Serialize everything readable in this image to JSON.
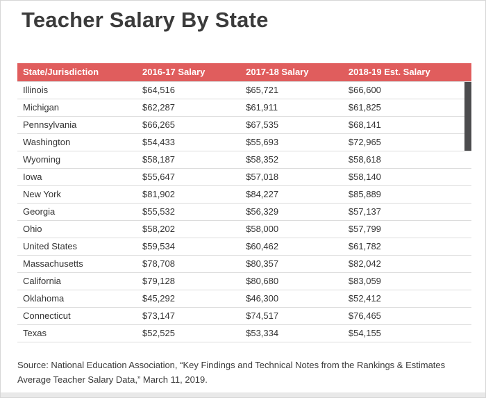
{
  "page": {
    "title": "Teacher Salary By State",
    "source_line1": "Source: National Education Association, “Key Findings and Technical Notes from the Rankings & Estimates",
    "source_line2": "Average Teacher Salary Data,” March 11, 2019."
  },
  "colors": {
    "header_bg": "#e05d5d",
    "header_text": "#ffffff",
    "scrollbar_thumb": "#4c4c4e"
  },
  "table": {
    "headers": [
      "State/Jurisdiction",
      "2016-17 Salary",
      "2017-18 Salary",
      "2018-19 Est. Salary"
    ],
    "rows": [
      [
        "Illinois",
        "$64,516",
        "$65,721",
        "$66,600"
      ],
      [
        "Michigan",
        "$62,287",
        "$61,911",
        "$61,825"
      ],
      [
        "Pennsylvania",
        "$66,265",
        "$67,535",
        "$68,141"
      ],
      [
        "Washington",
        "$54,433",
        "$55,693",
        "$72,965"
      ],
      [
        "Wyoming",
        "$58,187",
        "$58,352",
        "$58,618"
      ],
      [
        "Iowa",
        "$55,647",
        "$57,018",
        "$58,140"
      ],
      [
        "New York",
        "$81,902",
        "$84,227",
        "$85,889"
      ],
      [
        "Georgia",
        "$55,532",
        "$56,329",
        "$57,137"
      ],
      [
        "Ohio",
        "$58,202",
        "$58,000",
        "$57,799"
      ],
      [
        "United States",
        "$59,534",
        "$60,462",
        "$61,782"
      ],
      [
        "Massachusetts",
        "$78,708",
        "$80,357",
        "$82,042"
      ],
      [
        "California",
        "$79,128",
        "$80,680",
        "$83,059"
      ],
      [
        "Oklahoma",
        "$45,292",
        "$46,300",
        "$52,412"
      ],
      [
        "Connecticut",
        "$73,147",
        "$74,517",
        "$76,465"
      ],
      [
        "Texas",
        "$52,525",
        "$53,334",
        "$54,155"
      ]
    ]
  },
  "chart_data": {
    "type": "table",
    "title": "Teacher Salary By State",
    "categories": [
      "Illinois",
      "Michigan",
      "Pennsylvania",
      "Washington",
      "Wyoming",
      "Iowa",
      "New York",
      "Georgia",
      "Ohio",
      "United States",
      "Massachusetts",
      "California",
      "Oklahoma",
      "Connecticut",
      "Texas"
    ],
    "series": [
      {
        "name": "2016-17 Salary",
        "values": [
          64516,
          62287,
          66265,
          54433,
          58187,
          55647,
          81902,
          55532,
          58202,
          59534,
          78708,
          79128,
          45292,
          73147,
          52525
        ]
      },
      {
        "name": "2017-18 Salary",
        "values": [
          65721,
          61911,
          67535,
          55693,
          58352,
          57018,
          84227,
          56329,
          58000,
          60462,
          80357,
          80680,
          46300,
          74517,
          53334
        ]
      },
      {
        "name": "2018-19 Est. Salary",
        "values": [
          66600,
          61825,
          68141,
          72965,
          58618,
          58140,
          85889,
          57137,
          57799,
          61782,
          82042,
          83059,
          52412,
          76465,
          54155
        ]
      }
    ],
    "source": "Source: National Education Association, “Key Findings and Technical Notes from the Rankings & Estimates Average Teacher Salary Data,” March 11, 2019."
  }
}
